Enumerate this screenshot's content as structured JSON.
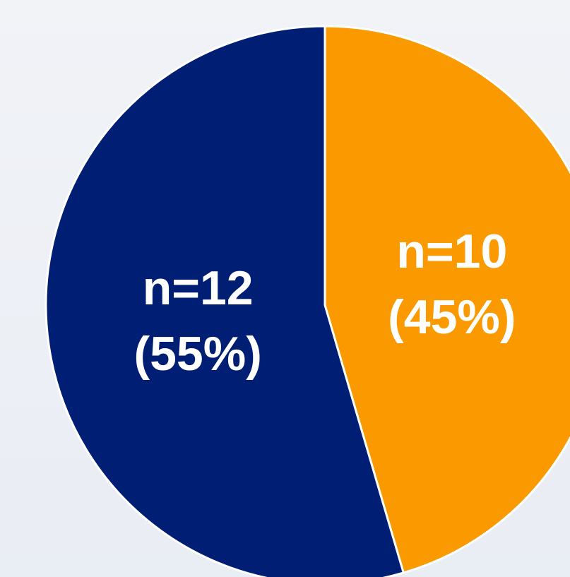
{
  "chart_data": {
    "type": "pie",
    "values": [
      10,
      12
    ],
    "value_labels": [
      "n=10",
      "n=12"
    ],
    "percent_labels": [
      "(45%)",
      "(55%)"
    ],
    "colors": [
      "#fb9a00",
      "#001f74"
    ]
  }
}
